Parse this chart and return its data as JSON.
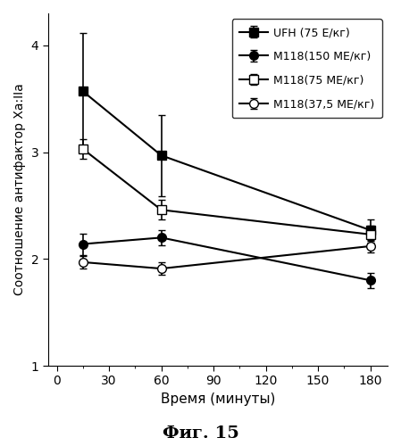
{
  "title": "",
  "xlabel": "Время (минуты)",
  "ylabel": "Соотношение антифактор Xa:IIa",
  "caption": "Фиг. 15",
  "xlim": [
    -5,
    190
  ],
  "ylim": [
    1,
    4.3
  ],
  "xticks": [
    0,
    30,
    60,
    90,
    120,
    150,
    180
  ],
  "yticks": [
    1,
    2,
    3,
    4
  ],
  "series": [
    {
      "label": "UFH (75 Е/кг)",
      "x": [
        15,
        60,
        180
      ],
      "y": [
        3.57,
        2.97,
        2.27
      ],
      "yerr": [
        0.55,
        0.38,
        0.1
      ],
      "color": "#000000",
      "marker": "s",
      "fillstyle": "full",
      "linestyle": "-"
    },
    {
      "label": "М118(150 МЕ/кг)",
      "x": [
        15,
        60,
        180
      ],
      "y": [
        2.14,
        2.2,
        1.8
      ],
      "yerr": [
        0.1,
        0.07,
        0.07
      ],
      "color": "#000000",
      "marker": "o",
      "fillstyle": "full",
      "linestyle": "-"
    },
    {
      "label": "М118(75 МЕ/кг)",
      "x": [
        15,
        60,
        180
      ],
      "y": [
        3.03,
        2.46,
        2.23
      ],
      "yerr": [
        0.09,
        0.09,
        0.08
      ],
      "color": "#000000",
      "marker": "s",
      "fillstyle": "none",
      "linestyle": "-"
    },
    {
      "label": "М118(37,5 МЕ/кг)",
      "x": [
        15,
        60,
        180
      ],
      "y": [
        1.97,
        1.91,
        2.12
      ],
      "yerr": [
        0.06,
        0.06,
        0.06
      ],
      "color": "#000000",
      "marker": "o",
      "fillstyle": "none",
      "linestyle": "-"
    }
  ],
  "legend_loc": "upper right",
  "background_color": "#ffffff",
  "figsize": [
    4.49,
    5.0
  ],
  "dpi": 100,
  "markersize": 7,
  "linewidth": 1.5,
  "capsize": 3,
  "ylabel_fontsize": 10,
  "xlabel_fontsize": 11,
  "tick_fontsize": 10,
  "legend_fontsize": 9,
  "caption_fontsize": 14
}
